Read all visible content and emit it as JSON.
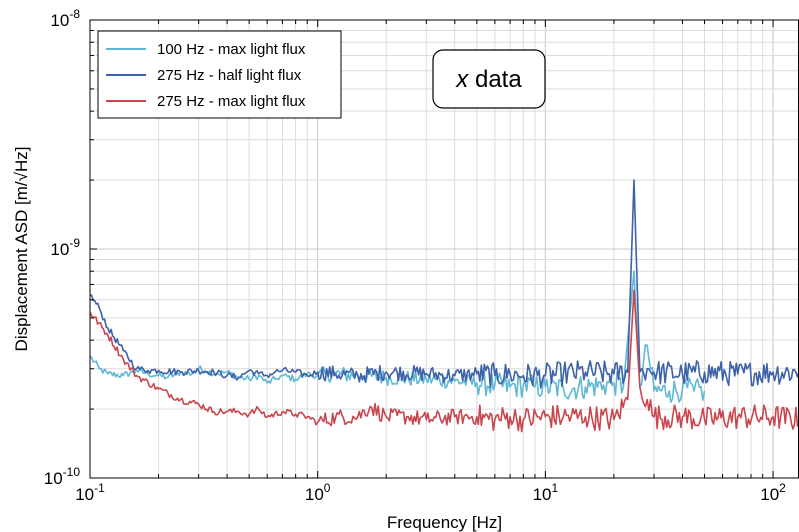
{
  "chart_data": {
    "type": "line",
    "title": "",
    "xlabel": "Frequency [Hz]",
    "ylabel": "Displacement ASD [m/√Hz]",
    "x_scale": "log",
    "y_scale": "log",
    "xlim": [
      0.1,
      130
    ],
    "ylim": [
      1e-10,
      1e-08
    ],
    "x_ticks": [
      {
        "value": 0.1,
        "base": "10",
        "exp": "-1"
      },
      {
        "value": 1,
        "base": "10",
        "exp": "0"
      },
      {
        "value": 10,
        "base": "10",
        "exp": "1"
      },
      {
        "value": 100,
        "base": "10",
        "exp": "2"
      }
    ],
    "y_ticks": [
      {
        "value": 1e-10,
        "base": "10",
        "exp": "-10"
      },
      {
        "value": 1e-09,
        "base": "10",
        "exp": "-9"
      },
      {
        "value": 1e-08,
        "base": "10",
        "exp": "-8"
      }
    ],
    "grid": true,
    "legend_position": "top-left",
    "annotation": {
      "italic": "x",
      "text": " data"
    },
    "series": [
      {
        "name": "100 Hz - max light flux",
        "color": "#5fb8d4",
        "x": [
          0.1,
          0.11,
          0.12,
          0.14,
          0.16,
          0.18,
          0.2,
          0.22,
          0.25,
          0.28,
          0.3,
          0.32,
          0.36,
          0.4,
          0.45,
          0.5,
          0.55,
          0.6,
          0.65,
          0.7,
          0.8,
          0.9,
          1.0,
          1.2,
          1.5,
          2,
          3,
          4,
          5,
          6,
          7,
          8,
          9,
          10,
          12,
          15,
          18,
          20,
          22,
          24.5,
          26,
          28,
          30,
          35,
          40,
          45,
          50
        ],
        "y": [
          3.4e-10,
          3e-10,
          2.85e-10,
          2.8e-10,
          2.95e-10,
          2.85e-10,
          2.8e-10,
          2.75e-10,
          2.9e-10,
          2.85e-10,
          3e-10,
          2.95e-10,
          2.85e-10,
          2.9e-10,
          2.75e-10,
          2.7e-10,
          2.8e-10,
          2.6e-10,
          2.7e-10,
          2.8e-10,
          2.7e-10,
          2.85e-10,
          2.8e-10,
          2.85e-10,
          2.8e-10,
          2.75e-10,
          2.7e-10,
          2.65e-10,
          2.6e-10,
          2.55e-10,
          2.5e-10,
          2.55e-10,
          2.5e-10,
          2.5e-10,
          2.45e-10,
          2.5e-10,
          2.55e-10,
          2.6e-10,
          2.5e-10,
          8e-10,
          2.5e-10,
          3.8e-10,
          2.4e-10,
          2.4e-10,
          2.45e-10,
          2.4e-10,
          2.4e-10
        ]
      },
      {
        "name": "275 Hz - half light flux",
        "color": "#3d62a8",
        "x": [
          0.1,
          0.11,
          0.12,
          0.14,
          0.16,
          0.18,
          0.2,
          0.25,
          0.3,
          0.35,
          0.4,
          0.45,
          0.5,
          0.55,
          0.6,
          0.65,
          0.7,
          0.8,
          0.9,
          1.0,
          1.2,
          1.5,
          2,
          3,
          4,
          5,
          6,
          7,
          8,
          10,
          12,
          15,
          20,
          23,
          24.5,
          26,
          28,
          30,
          40,
          50,
          70,
          100,
          130
        ],
        "y": [
          6.3e-10,
          5.5e-10,
          4.5e-10,
          3.6e-10,
          3e-10,
          2.95e-10,
          2.95e-10,
          2.9e-10,
          2.95e-10,
          2.9e-10,
          2.8e-10,
          2.75e-10,
          2.95e-10,
          2.85e-10,
          2.8e-10,
          2.9e-10,
          2.95e-10,
          2.9e-10,
          2.8e-10,
          2.9e-10,
          2.85e-10,
          2.8e-10,
          2.9e-10,
          2.85e-10,
          2.8e-10,
          2.85e-10,
          2.8e-10,
          2.85e-10,
          2.8e-10,
          2.8e-10,
          2.85e-10,
          2.9e-10,
          2.85e-10,
          2.9e-10,
          2e-09,
          2.9e-10,
          3e-10,
          2.9e-10,
          2.85e-10,
          2.9e-10,
          2.85e-10,
          2.9e-10,
          2.9e-10
        ]
      },
      {
        "name": "275 Hz - max light flux",
        "color": "#c8474f",
        "x": [
          0.1,
          0.12,
          0.14,
          0.16,
          0.2,
          0.25,
          0.3,
          0.35,
          0.4,
          0.45,
          0.5,
          0.55,
          0.6,
          0.7,
          0.8,
          0.9,
          1.0,
          1.2,
          1.5,
          1.7,
          2,
          2.5,
          3,
          4,
          5,
          6,
          7,
          8,
          10,
          12,
          15,
          20,
          23,
          24.5,
          26,
          28,
          30,
          40,
          50,
          70,
          100,
          130
        ],
        "y": [
          5.3e-10,
          4.2e-10,
          3.3e-10,
          2.8e-10,
          2.45e-10,
          2.2e-10,
          2.1e-10,
          1.95e-10,
          1.95e-10,
          1.95e-10,
          1.9e-10,
          2e-10,
          1.85e-10,
          1.95e-10,
          1.9e-10,
          1.85e-10,
          1.75e-10,
          1.85e-10,
          1.85e-10,
          2.05e-10,
          1.85e-10,
          1.85e-10,
          1.8e-10,
          1.85e-10,
          1.85e-10,
          1.8e-10,
          1.85e-10,
          1.8e-10,
          1.85e-10,
          1.85e-10,
          1.85e-10,
          1.8e-10,
          2.2e-10,
          6.6e-10,
          2.5e-10,
          2.2e-10,
          1.85e-10,
          1.85e-10,
          1.8e-10,
          1.85e-10,
          1.85e-10,
          1.8e-10
        ]
      }
    ]
  }
}
